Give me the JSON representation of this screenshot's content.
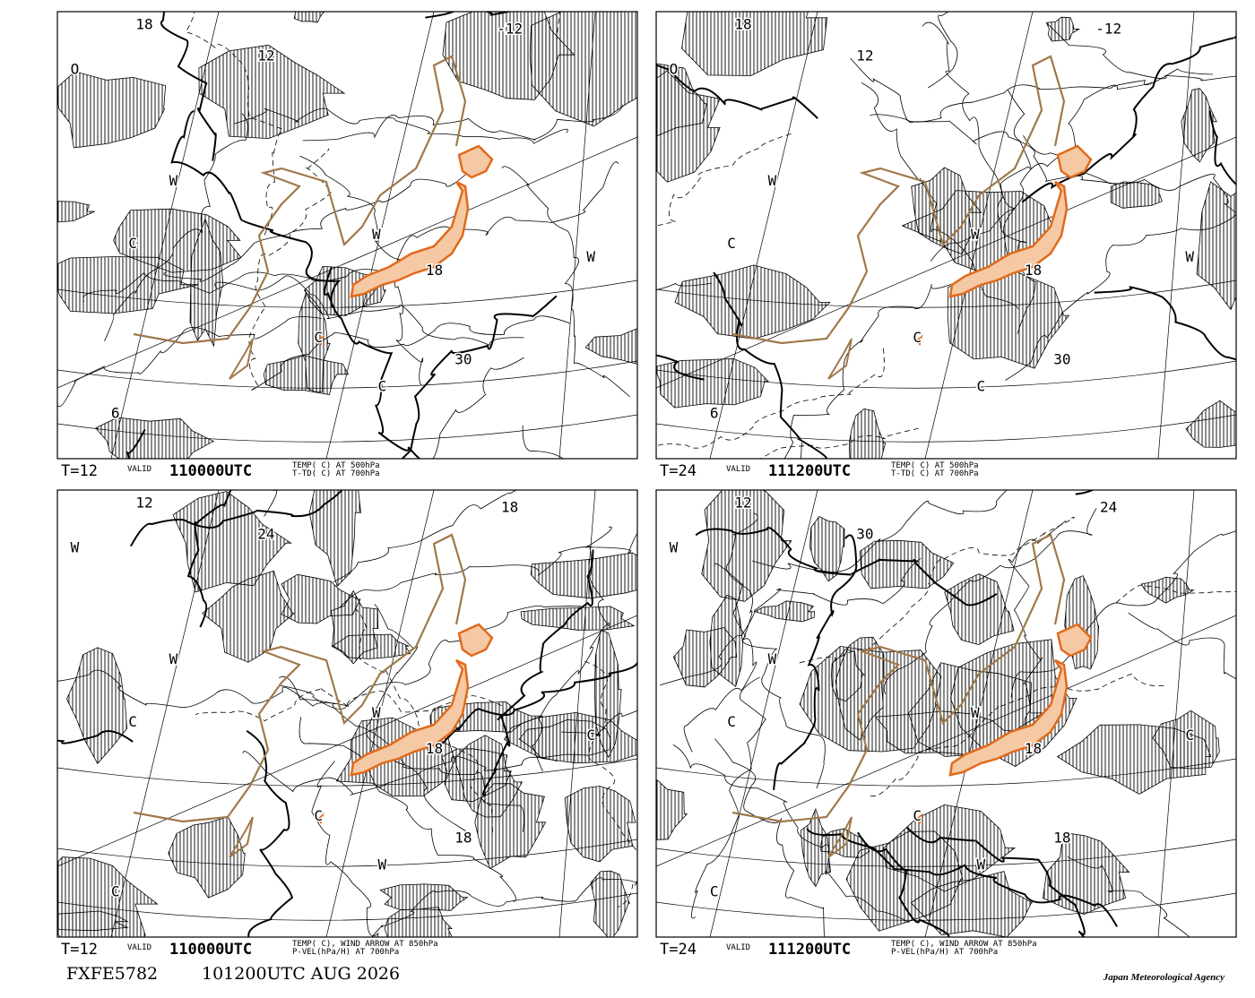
{
  "panels": [
    {
      "forecast": "T=12",
      "valid_word": "VALID",
      "valid_time": "110000UTC",
      "fields": [
        "TEMP( C) AT 500hPa",
        "T-TD( C) AT 700hPa"
      ],
      "labels": [
        "18",
        "12",
        "-12",
        "W",
        "C",
        "W",
        "C",
        "30",
        "6",
        "C",
        "W",
        "18",
        "O"
      ]
    },
    {
      "forecast": "T=24",
      "valid_word": "VALID",
      "valid_time": "111200UTC",
      "fields": [
        "TEMP( C) AT 500hPa",
        "T-TD( C) AT 700hPa"
      ],
      "labels": [
        "18",
        "12",
        "-12",
        "W",
        "C",
        "W",
        "C",
        "30",
        "6",
        "C",
        "W",
        "18",
        "O"
      ]
    },
    {
      "forecast": "T=12",
      "valid_word": "VALID",
      "valid_time": "110000UTC",
      "fields": [
        "TEMP( C), WIND ARROW AT 850hPa",
        "P-VEL(hPa/H) AT 700hPa"
      ],
      "labels": [
        "12",
        "24",
        "18",
        "W",
        "C",
        "W",
        "C",
        "18",
        "C",
        "W",
        "C",
        "18",
        "W"
      ]
    },
    {
      "forecast": "T=24",
      "valid_word": "VALID",
      "valid_time": "111200UTC",
      "fields": [
        "TEMP( C), WIND ARROW AT 850hPa",
        "P-VEL(hPa/H) AT 700hPa"
      ],
      "labels": [
        "12",
        "30",
        "24",
        "W",
        "C",
        "W",
        "C",
        "18",
        "C",
        "W",
        "C",
        "18",
        "W"
      ]
    }
  ],
  "footer": {
    "code": "FXFE5782",
    "issued": "101200UTC AUG 2026",
    "agency": "Japan Meteorological Agency"
  }
}
